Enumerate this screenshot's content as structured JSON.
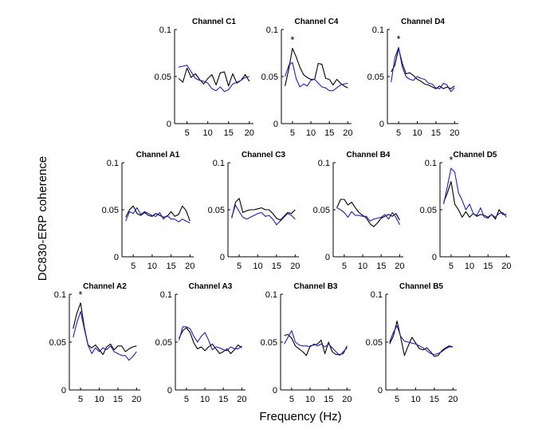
{
  "figure": {
    "ylabel": "DC830-ERP coherence",
    "xlabel": "Frequency (Hz)"
  },
  "colors": {
    "series_a": "#000000",
    "series_b": "#1f1fbf"
  },
  "chart_data": [
    {
      "type": "line",
      "title": "Channel C1",
      "star": "",
      "xlim": [
        2,
        21
      ],
      "ylim": [
        0,
        0.1
      ],
      "xticks": [
        5,
        10,
        15,
        20
      ],
      "yticks": [
        0,
        0.05,
        0.1
      ],
      "ytick_labels": [
        "0",
        "0.05",
        "0.1"
      ],
      "x": [
        3,
        4,
        5,
        6,
        7,
        8,
        9,
        10,
        11,
        12,
        13,
        14,
        15,
        16,
        17,
        18,
        19,
        20
      ],
      "series": [
        {
          "color": "#000000",
          "values": [
            0.048,
            0.044,
            0.059,
            0.049,
            0.053,
            0.047,
            0.042,
            0.048,
            0.052,
            0.041,
            0.054,
            0.055,
            0.04,
            0.053,
            0.043,
            0.046,
            0.052,
            0.045
          ]
        },
        {
          "color": "#1f1fbf",
          "values": [
            0.06,
            0.061,
            0.062,
            0.055,
            0.048,
            0.046,
            0.045,
            0.043,
            0.037,
            0.035,
            0.039,
            0.034,
            0.036,
            0.042,
            0.044,
            0.046,
            0.049,
            0.05
          ]
        }
      ]
    },
    {
      "type": "line",
      "title": "Channel C4",
      "star": "*",
      "xlim": [
        2,
        21
      ],
      "ylim": [
        0,
        0.1
      ],
      "xticks": [
        5,
        10,
        15,
        20
      ],
      "yticks": [
        0,
        0.05,
        0.1
      ],
      "ytick_labels": [
        "0",
        "0.05",
        "0.1"
      ],
      "x": [
        3,
        4,
        5,
        6,
        7,
        8,
        9,
        10,
        11,
        12,
        13,
        14,
        15,
        16,
        17,
        18,
        19,
        20
      ],
      "series": [
        {
          "color": "#000000",
          "values": [
            0.04,
            0.058,
            0.08,
            0.071,
            0.06,
            0.052,
            0.049,
            0.047,
            0.047,
            0.064,
            0.063,
            0.048,
            0.047,
            0.041,
            0.047,
            0.043,
            0.04,
            0.038
          ]
        },
        {
          "color": "#1f1fbf",
          "values": [
            0.05,
            0.062,
            0.065,
            0.048,
            0.039,
            0.042,
            0.04,
            0.046,
            0.047,
            0.043,
            0.039,
            0.038,
            0.035,
            0.035,
            0.038,
            0.041,
            0.042,
            0.043
          ]
        }
      ]
    },
    {
      "type": "line",
      "title": "Channel D4",
      "star": "*",
      "xlim": [
        2,
        21
      ],
      "ylim": [
        0,
        0.1
      ],
      "xticks": [
        5,
        10,
        15,
        20
      ],
      "yticks": [
        0,
        0.05,
        0.1
      ],
      "ytick_labels": [
        "0",
        "0.05",
        "0.1"
      ],
      "x": [
        3,
        4,
        5,
        6,
        7,
        8,
        9,
        10,
        11,
        12,
        13,
        14,
        15,
        16,
        17,
        18,
        19,
        20
      ],
      "series": [
        {
          "color": "#000000",
          "values": [
            0.055,
            0.062,
            0.08,
            0.064,
            0.053,
            0.054,
            0.051,
            0.047,
            0.045,
            0.042,
            0.041,
            0.039,
            0.037,
            0.04,
            0.037,
            0.039,
            0.037,
            0.04
          ]
        },
        {
          "color": "#1f1fbf",
          "values": [
            0.044,
            0.07,
            0.081,
            0.06,
            0.05,
            0.047,
            0.046,
            0.05,
            0.048,
            0.047,
            0.043,
            0.042,
            0.038,
            0.037,
            0.043,
            0.041,
            0.034,
            0.038
          ]
        }
      ]
    },
    {
      "type": "line",
      "title": "Channel A1",
      "star": "",
      "xlim": [
        2,
        21
      ],
      "ylim": [
        0,
        0.1
      ],
      "xticks": [
        5,
        10,
        15,
        20
      ],
      "yticks": [
        0,
        0.05,
        0.1
      ],
      "ytick_labels": [
        "0",
        "0.05",
        "0.1"
      ],
      "x": [
        3,
        4,
        5,
        6,
        7,
        8,
        9,
        10,
        11,
        12,
        13,
        14,
        15,
        16,
        17,
        18,
        19,
        20
      ],
      "series": [
        {
          "color": "#000000",
          "values": [
            0.042,
            0.05,
            0.054,
            0.046,
            0.044,
            0.047,
            0.044,
            0.043,
            0.046,
            0.044,
            0.042,
            0.043,
            0.048,
            0.043,
            0.045,
            0.054,
            0.049,
            0.038
          ]
        },
        {
          "color": "#1f1fbf",
          "values": [
            0.038,
            0.048,
            0.046,
            0.052,
            0.045,
            0.048,
            0.046,
            0.044,
            0.043,
            0.047,
            0.04,
            0.044,
            0.04,
            0.04,
            0.037,
            0.04,
            0.038,
            0.036
          ]
        }
      ]
    },
    {
      "type": "line",
      "title": "Channel C3",
      "star": "",
      "xlim": [
        2,
        21
      ],
      "ylim": [
        0,
        0.1
      ],
      "xticks": [
        5,
        10,
        15,
        20
      ],
      "yticks": [
        0,
        0.05,
        0.1
      ],
      "ytick_labels": [
        "0",
        "0.05",
        "0.1"
      ],
      "x": [
        3,
        4,
        5,
        6,
        7,
        8,
        9,
        10,
        11,
        12,
        13,
        14,
        15,
        16,
        17,
        18,
        19,
        20
      ],
      "series": [
        {
          "color": "#000000",
          "values": [
            0.041,
            0.058,
            0.062,
            0.047,
            0.049,
            0.05,
            0.05,
            0.051,
            0.052,
            0.05,
            0.05,
            0.046,
            0.041,
            0.039,
            0.043,
            0.047,
            0.046,
            0.05
          ]
        },
        {
          "color": "#1f1fbf",
          "values": [
            0.042,
            0.055,
            0.048,
            0.042,
            0.04,
            0.042,
            0.044,
            0.046,
            0.047,
            0.043,
            0.044,
            0.04,
            0.034,
            0.038,
            0.042,
            0.046,
            0.044,
            0.04
          ]
        }
      ]
    },
    {
      "type": "line",
      "title": "Channel B4",
      "star": "",
      "xlim": [
        2,
        21
      ],
      "ylim": [
        0,
        0.1
      ],
      "xticks": [
        5,
        10,
        15,
        20
      ],
      "yticks": [
        0,
        0.05,
        0.1
      ],
      "ytick_labels": [
        "0",
        "0.05",
        "0.1"
      ],
      "x": [
        3,
        4,
        5,
        6,
        7,
        8,
        9,
        10,
        11,
        12,
        13,
        14,
        15,
        16,
        17,
        18,
        19,
        20
      ],
      "series": [
        {
          "color": "#000000",
          "values": [
            0.052,
            0.061,
            0.061,
            0.055,
            0.058,
            0.052,
            0.047,
            0.044,
            0.041,
            0.035,
            0.032,
            0.036,
            0.041,
            0.043,
            0.045,
            0.043,
            0.046,
            0.039
          ]
        },
        {
          "color": "#1f1fbf",
          "values": [
            0.052,
            0.05,
            0.047,
            0.042,
            0.048,
            0.044,
            0.044,
            0.043,
            0.043,
            0.038,
            0.04,
            0.041,
            0.042,
            0.045,
            0.04,
            0.047,
            0.042,
            0.034
          ]
        }
      ]
    },
    {
      "type": "line",
      "title": "Channel D5",
      "star": "*",
      "xlim": [
        2,
        21
      ],
      "ylim": [
        0,
        0.1
      ],
      "xticks": [
        5,
        10,
        15,
        20
      ],
      "yticks": [
        0,
        0.05,
        0.1
      ],
      "ytick_labels": [
        "0",
        "0.05",
        "0.1"
      ],
      "x": [
        3,
        4,
        5,
        6,
        7,
        8,
        9,
        10,
        11,
        12,
        13,
        14,
        15,
        16,
        17,
        18,
        19,
        20
      ],
      "series": [
        {
          "color": "#000000",
          "values": [
            0.058,
            0.068,
            0.08,
            0.056,
            0.05,
            0.042,
            0.048,
            0.042,
            0.046,
            0.043,
            0.045,
            0.044,
            0.042,
            0.045,
            0.04,
            0.05,
            0.045,
            0.045
          ]
        },
        {
          "color": "#1f1fbf",
          "values": [
            0.056,
            0.075,
            0.094,
            0.09,
            0.068,
            0.06,
            0.05,
            0.056,
            0.046,
            0.044,
            0.052,
            0.042,
            0.041,
            0.045,
            0.042,
            0.046,
            0.047,
            0.042
          ]
        }
      ]
    },
    {
      "type": "line",
      "title": "Channel A2",
      "star": "*",
      "xlim": [
        2,
        21
      ],
      "ylim": [
        0,
        0.1
      ],
      "xticks": [
        5,
        10,
        15,
        20
      ],
      "yticks": [
        0,
        0.05,
        0.1
      ],
      "ytick_labels": [
        "0",
        "0.05",
        "0.1"
      ],
      "x": [
        3,
        4,
        5,
        6,
        7,
        8,
        9,
        10,
        11,
        12,
        13,
        14,
        15,
        16,
        17,
        18,
        19,
        20
      ],
      "series": [
        {
          "color": "#000000",
          "values": [
            0.064,
            0.08,
            0.091,
            0.066,
            0.047,
            0.044,
            0.047,
            0.042,
            0.037,
            0.045,
            0.048,
            0.042,
            0.046,
            0.046,
            0.04,
            0.043,
            0.045,
            0.046
          ]
        },
        {
          "color": "#1f1fbf",
          "values": [
            0.055,
            0.07,
            0.082,
            0.064,
            0.047,
            0.038,
            0.044,
            0.04,
            0.044,
            0.042,
            0.046,
            0.04,
            0.038,
            0.036,
            0.036,
            0.031,
            0.035,
            0.04
          ]
        }
      ]
    },
    {
      "type": "line",
      "title": "Channel A3",
      "star": "",
      "xlim": [
        2,
        21
      ],
      "ylim": [
        0,
        0.1
      ],
      "xticks": [
        5,
        10,
        15,
        20
      ],
      "yticks": [
        0,
        0.05,
        0.1
      ],
      "ytick_labels": [
        "0",
        "0.05",
        "0.1"
      ],
      "x": [
        3,
        4,
        5,
        6,
        7,
        8,
        9,
        10,
        11,
        12,
        13,
        14,
        15,
        16,
        17,
        18,
        19,
        20
      ],
      "series": [
        {
          "color": "#000000",
          "values": [
            0.054,
            0.062,
            0.065,
            0.06,
            0.049,
            0.043,
            0.045,
            0.041,
            0.045,
            0.048,
            0.043,
            0.038,
            0.04,
            0.043,
            0.038,
            0.042,
            0.047,
            0.044
          ]
        },
        {
          "color": "#1f1fbf",
          "values": [
            0.052,
            0.066,
            0.066,
            0.064,
            0.056,
            0.05,
            0.056,
            0.06,
            0.052,
            0.042,
            0.045,
            0.044,
            0.042,
            0.041,
            0.045,
            0.043,
            0.043,
            0.046
          ]
        }
      ]
    },
    {
      "type": "line",
      "title": "Channel B3",
      "star": "",
      "xlim": [
        2,
        21
      ],
      "ylim": [
        0,
        0.1
      ],
      "xticks": [
        5,
        10,
        15,
        20
      ],
      "yticks": [
        0,
        0.05,
        0.1
      ],
      "ytick_labels": [
        "0",
        "0.05",
        "0.1"
      ],
      "x": [
        3,
        4,
        5,
        6,
        7,
        8,
        9,
        10,
        11,
        12,
        13,
        14,
        15,
        16,
        17,
        18,
        19,
        20
      ],
      "series": [
        {
          "color": "#000000",
          "values": [
            0.057,
            0.058,
            0.054,
            0.046,
            0.043,
            0.04,
            0.036,
            0.046,
            0.047,
            0.048,
            0.052,
            0.038,
            0.05,
            0.04,
            0.037,
            0.037,
            0.038,
            0.046
          ]
        },
        {
          "color": "#1f1fbf",
          "values": [
            0.048,
            0.055,
            0.062,
            0.05,
            0.047,
            0.046,
            0.046,
            0.045,
            0.048,
            0.046,
            0.048,
            0.045,
            0.048,
            0.044,
            0.04,
            0.036,
            0.04,
            0.044
          ]
        }
      ]
    },
    {
      "type": "line",
      "title": "Channel B5",
      "star": "",
      "xlim": [
        2,
        21
      ],
      "ylim": [
        0,
        0.1
      ],
      "xticks": [
        5,
        10,
        15,
        20
      ],
      "yticks": [
        0,
        0.05,
        0.1
      ],
      "ytick_labels": [
        "0",
        "0.05",
        "0.1"
      ],
      "x": [
        3,
        4,
        5,
        6,
        7,
        8,
        9,
        10,
        11,
        12,
        13,
        14,
        15,
        16,
        17,
        18,
        19,
        20
      ],
      "series": [
        {
          "color": "#000000",
          "values": [
            0.048,
            0.056,
            0.072,
            0.055,
            0.036,
            0.046,
            0.055,
            0.049,
            0.043,
            0.042,
            0.044,
            0.04,
            0.035,
            0.036,
            0.041,
            0.044,
            0.046,
            0.045
          ]
        },
        {
          "color": "#1f1fbf",
          "values": [
            0.05,
            0.06,
            0.067,
            0.056,
            0.051,
            0.05,
            0.049,
            0.048,
            0.046,
            0.044,
            0.041,
            0.038,
            0.037,
            0.038,
            0.04,
            0.043,
            0.045,
            0.045
          ]
        }
      ]
    }
  ]
}
